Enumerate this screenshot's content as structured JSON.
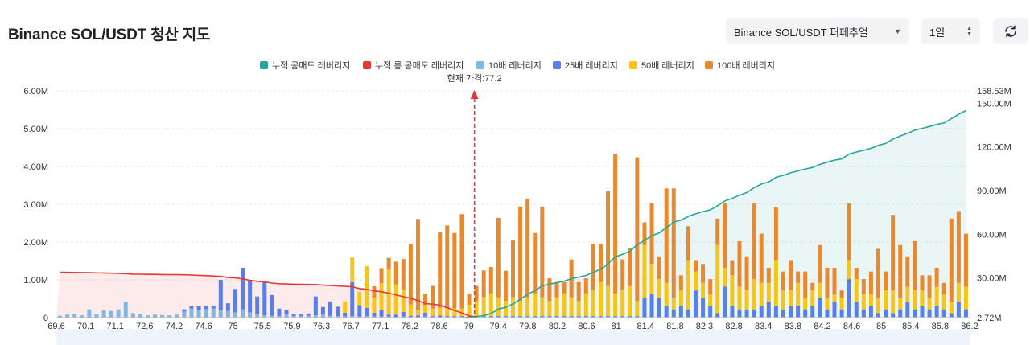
{
  "header": {
    "title": "Binance SOL/USDT 청산 지도",
    "market_select": "Binance SOL/USDT 퍼페추얼",
    "period_select": "1일",
    "refresh_icon": "refresh-icon"
  },
  "colors": {
    "short_cum": "#26a69a",
    "long_cum": "#e53935",
    "lev10": "#7fb8e0",
    "lev25": "#5b7fe8",
    "lev50": "#f5c518",
    "lev100": "#e8892e",
    "price_line": "#e53935"
  },
  "chart_data": {
    "type": "bar",
    "legend": [
      "누적 공매도 레버리지",
      "누적 롱 공매도 레버리지",
      "10배 레버리지",
      "25배 레버리지",
      "50배 레버리지",
      "100배 레버리지"
    ],
    "current_price_label": "현재 가격:77.2",
    "current_price": 77.2,
    "x_ticks": [
      "69.6",
      "70.1",
      "71.1",
      "72.6",
      "74.2",
      "74.6",
      "75",
      "75.5",
      "75.9",
      "76.3",
      "76.7",
      "77.1",
      "78.2",
      "78.6",
      "79",
      "79.4",
      "79.8",
      "80.2",
      "80.6",
      "81",
      "81.4",
      "81.8",
      "82.3",
      "82.8",
      "83.4",
      "83.8",
      "84.2",
      "84.6",
      "85",
      "85.4",
      "85.8",
      "86.2"
    ],
    "y_left_ticks": [
      "0",
      "1.00M",
      "2.00M",
      "3.00M",
      "4.00M",
      "5.00M",
      "6.00M"
    ],
    "y_left_range": [
      0,
      6000000
    ],
    "y_right_ticks": [
      "2.72M",
      "30.00M",
      "60.00M",
      "90.00M",
      "120.00M",
      "150.00M",
      "158.53M"
    ],
    "y_right_range": [
      2720000,
      158530000
    ],
    "bins": 125,
    "price_range": [
      69.6,
      86.2
    ],
    "series": [
      {
        "name": "10배 레버리지",
        "values": [
          0.05,
          0.08,
          0.1,
          0.06,
          0.22,
          0.09,
          0.2,
          0.18,
          0.22,
          0.42,
          0.12,
          0.1,
          0.06,
          0.08,
          0.07,
          0.06,
          0.08,
          0.16,
          0.24,
          0.2,
          0.22,
          0.24,
          0.2,
          0.18,
          0.14,
          0.22,
          0.14,
          0.1,
          0.06,
          0.05,
          0.04,
          0.08,
          0.04,
          0.04,
          0.05,
          0.06,
          0.08,
          0.05,
          0.04,
          0.03,
          0.04,
          0.03,
          0.04,
          0.03,
          0.03,
          0.03,
          0.02,
          0.03,
          0.02,
          0.02,
          0.03,
          0.02,
          0.02,
          0.02,
          0.02,
          0.02,
          0.02,
          0.02,
          0.03,
          0.02,
          0.02,
          0.02,
          0.02,
          0.02,
          0.02,
          0.02,
          0.02,
          0.02,
          0.02,
          0.02,
          0.02,
          0.02,
          0.02,
          0.02,
          0.02,
          0.02,
          0.02,
          0.02,
          0.02,
          0.02,
          0.02,
          0.02,
          0.02,
          0.02,
          0.02,
          0.02,
          0.02,
          0.02,
          0.02,
          0.02,
          0.02,
          0.02,
          0.02,
          0.02,
          0.02,
          0.02,
          0.02,
          0.02,
          0.02,
          0.02,
          0.02,
          0.02,
          0.02,
          0.02,
          0.02,
          0.02,
          0.02,
          0.02,
          0.02,
          0.02,
          0.02,
          0.02,
          0.02,
          0.02,
          0.02,
          0.02,
          0.02,
          0.02,
          0.02,
          0.02,
          0.02,
          0.02,
          0.02,
          0.02,
          0.02
        ]
      },
      {
        "name": "25배 레버리지",
        "values": [
          0,
          0,
          0,
          0,
          0,
          0,
          0,
          0,
          0,
          0,
          0,
          0,
          0,
          0,
          0,
          0,
          0,
          0.06,
          0.06,
          0.1,
          0.1,
          0.08,
          0.8,
          0.2,
          0.62,
          1.1,
          0.82,
          0.46,
          0.9,
          0.55,
          0.2,
          0.12,
          0.05,
          0.05,
          0.06,
          0.5,
          0.2,
          0.38,
          0.25,
          0.1,
          0.9,
          0.3,
          0.22,
          0.1,
          0.18,
          0.05,
          0.06,
          0.12,
          0.03,
          0.04,
          0.1,
          0.02,
          0.04,
          0.02,
          0.02,
          0.02,
          0.02,
          0.02,
          0.02,
          0.02,
          0.02,
          0.02,
          0.02,
          0.02,
          0.02,
          0.02,
          0.02,
          0.02,
          0.02,
          0.02,
          0.02,
          0.02,
          0.02,
          0.02,
          0.02,
          0.02,
          0.02,
          0.02,
          0.02,
          0.02,
          0.5,
          0.6,
          0.5,
          0.3,
          0.2,
          0.3,
          0.2,
          0.7,
          0.5,
          0.3,
          0.1,
          0.8,
          0.3,
          0.2,
          0.2,
          0.2,
          0.3,
          0.4,
          0.3,
          0.2,
          0.3,
          0.3,
          0.2,
          0.3,
          0.5,
          0.2,
          0.4,
          0.2,
          1.0,
          0.4,
          0.2,
          0.3,
          0.1,
          0.2,
          0.1,
          0.2,
          0.4,
          0.2,
          0.3,
          0.2,
          0.3,
          0.2,
          0.1,
          0.4,
          0.2
        ]
      },
      {
        "name": "50배 레버리지",
        "values": [
          0,
          0,
          0,
          0,
          0,
          0,
          0,
          0,
          0,
          0,
          0,
          0,
          0,
          0,
          0,
          0,
          0,
          0,
          0,
          0,
          0,
          0,
          0,
          0,
          0,
          0,
          0,
          0,
          0,
          0,
          0,
          0,
          0,
          0,
          0,
          0,
          0,
          0,
          0,
          0.3,
          0.65,
          0.35,
          1.1,
          0.4,
          0.7,
          1.2,
          0.8,
          0.6,
          0.3,
          0.15,
          0.2,
          0.2,
          0.2,
          0.2,
          0.2,
          0.2,
          0.3,
          0.4,
          0.5,
          0.6,
          0.5,
          0.4,
          0.5,
          0.4,
          0.5,
          0.6,
          0.5,
          0.4,
          0.5,
          0.6,
          0.5,
          0.4,
          0.6,
          0.7,
          0.9,
          0.8,
          0.6,
          0.7,
          0.8,
          0.4,
          1.4,
          0.8,
          0.5,
          0.6,
          0.3,
          0.4,
          1.3,
          0.5,
          0.4,
          0.3,
          1.8,
          0.5,
          0.8,
          0.6,
          0.5,
          0.8,
          0.6,
          0.5,
          1.2,
          0.5,
          0.4,
          0.6,
          0.3,
          0.4,
          0.4,
          0.3,
          0.2,
          0.3,
          0.5,
          0.6,
          0.4,
          0.3,
          0.4,
          0.5,
          0.6,
          0.3,
          0.4,
          0.5,
          0.4,
          0.3,
          0.5,
          0.4,
          0.3,
          0.5,
          0.6
        ]
      },
      {
        "name": "100배 레버리지",
        "values": [
          0,
          0,
          0,
          0,
          0,
          0,
          0,
          0,
          0,
          0,
          0,
          0,
          0,
          0,
          0,
          0,
          0,
          0,
          0,
          0,
          0,
          0,
          0,
          0,
          0,
          0,
          0,
          0,
          0,
          0,
          0,
          0,
          0,
          0,
          0,
          0,
          0,
          0,
          0,
          0,
          0,
          0,
          0,
          0.3,
          0.4,
          0.3,
          0.6,
          0.8,
          1.6,
          2.4,
          0.3,
          0.6,
          2.0,
          2.2,
          2.0,
          2.5,
          0.3,
          0.4,
          0.7,
          0.7,
          2.1,
          0.8,
          1.5,
          2.5,
          2.6,
          1.6,
          2.4,
          0.6,
          0.4,
          0.3,
          1.0,
          0.5,
          0.4,
          1.2,
          1.0,
          2.5,
          3.7,
          0.8,
          1.0,
          3.8,
          0.6,
          1.6,
          0.6,
          2.5,
          2.9,
          0.4,
          0.9,
          0.3,
          0.5,
          0.4,
          0.7,
          1.7,
          0.4,
          1.2,
          0.9,
          2.0,
          1.3,
          0.4,
          1.4,
          0.5,
          0.8,
          0.3,
          0.7,
          0.2,
          1.0,
          0.8,
          0.7,
          0.2,
          1.5,
          0.3,
          0.4,
          0.6,
          1.3,
          0.5,
          2.0,
          1.4,
          0.8,
          1.3,
          0.4,
          0.6,
          0.5,
          0.3,
          2.2,
          1.9,
          1.4
        ]
      }
    ]
  }
}
